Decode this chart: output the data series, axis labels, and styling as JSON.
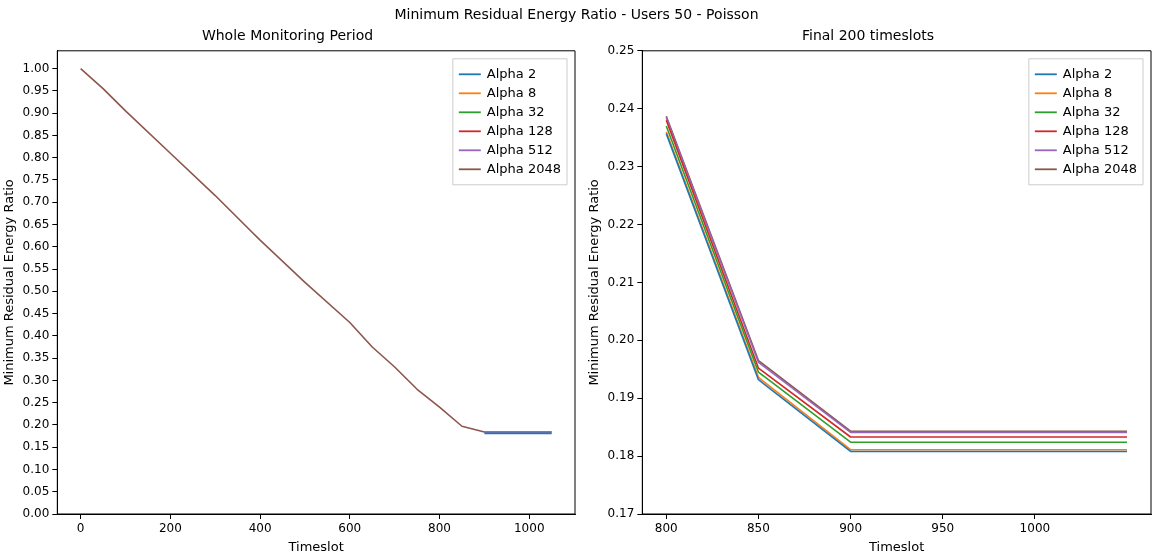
{
  "chart_data": [
    {
      "type": "line",
      "title": "Whole Monitoring Period",
      "xlabel": "Timeslot",
      "ylabel": "Minimum Residual Energy Ratio",
      "annotations": [
        "Minimum Residual Energy Ratio - Users 50 - Poisson"
      ],
      "x": [
        0,
        50,
        100,
        200,
        300,
        400,
        500,
        600,
        650,
        700,
        750,
        800,
        850,
        900,
        1050
      ],
      "series": [
        {
          "name": "Alpha 2",
          "color": "#1f77b4",
          "values": [
            null,
            null,
            null,
            null,
            null,
            null,
            null,
            null,
            null,
            null,
            null,
            null,
            null,
            0.181,
            0.181
          ]
        },
        {
          "name": "Alpha 8",
          "color": "#ff7f0e",
          "values": [
            null,
            null,
            null,
            null,
            null,
            null,
            null,
            null,
            null,
            null,
            null,
            null,
            null,
            null,
            null
          ]
        },
        {
          "name": "Alpha 32",
          "color": "#2ca02c",
          "values": [
            null,
            null,
            null,
            null,
            null,
            null,
            null,
            null,
            null,
            null,
            null,
            null,
            null,
            null,
            null
          ]
        },
        {
          "name": "Alpha 128",
          "color": "#d62728",
          "values": [
            null,
            null,
            null,
            null,
            null,
            null,
            null,
            null,
            null,
            null,
            null,
            null,
            null,
            null,
            null
          ]
        },
        {
          "name": "Alpha 512",
          "color": "#9467bd",
          "values": [
            null,
            null,
            null,
            null,
            null,
            null,
            null,
            null,
            null,
            null,
            null,
            null,
            null,
            0.184,
            0.184
          ]
        },
        {
          "name": "Alpha 2048",
          "color": "#8c564b",
          "values": [
            1.0,
            0.955,
            0.905,
            0.81,
            0.715,
            0.615,
            0.52,
            0.43,
            0.375,
            0.33,
            0.28,
            0.24,
            0.197,
            0.184,
            0.184
          ]
        }
      ],
      "xlim": [
        -52,
        1102
      ],
      "xticks": [
        0,
        200,
        400,
        600,
        800,
        1000
      ],
      "ylim": [
        0,
        1.04
      ],
      "yticks": [
        {
          "value": 0,
          "label": "0.00"
        },
        {
          "value": 0.05,
          "label": "0.05"
        },
        {
          "value": 0.1,
          "label": "0.10"
        },
        {
          "value": 0.15,
          "label": "0.15"
        },
        {
          "value": 0.2,
          "label": "0.20"
        },
        {
          "value": 0.25,
          "label": "0.25"
        },
        {
          "value": 0.3,
          "label": "0.30"
        },
        {
          "value": 0.35,
          "label": "0.35"
        },
        {
          "value": 0.4,
          "label": "0.40"
        },
        {
          "value": 0.45,
          "label": "0.45"
        },
        {
          "value": 0.5,
          "label": "0.50"
        },
        {
          "value": 0.55,
          "label": "0.55"
        },
        {
          "value": 0.6,
          "label": "0.60"
        },
        {
          "value": 0.65,
          "label": "0.65"
        },
        {
          "value": 0.7,
          "label": "0.70"
        },
        {
          "value": 0.75,
          "label": "0.75"
        },
        {
          "value": 0.8,
          "label": "0.80"
        },
        {
          "value": 0.85,
          "label": "0.85"
        },
        {
          "value": 0.9,
          "label": "0.90"
        },
        {
          "value": 0.95,
          "label": "0.95"
        },
        {
          "value": 1,
          "label": "1.00"
        }
      ],
      "grid": false,
      "legend": "top right",
      "marker": "none",
      "line_style": "solid"
    },
    {
      "type": "line",
      "title": "Final 200 timeslots",
      "xlabel": "Timeslot",
      "ylabel": "Minimum Residual Energy Ratio",
      "x": [
        800,
        850,
        900,
        1050
      ],
      "series": [
        {
          "name": "Alpha 2",
          "color": "#1f77b4",
          "values": [
            0.2357,
            0.1932,
            0.1808,
            0.1808
          ]
        },
        {
          "name": "Alpha 8",
          "color": "#ff7f0e",
          "values": [
            0.236,
            0.1936,
            0.1811,
            0.1811
          ]
        },
        {
          "name": "Alpha 32",
          "color": "#2ca02c",
          "values": [
            0.237,
            0.1945,
            0.1824,
            0.1824
          ]
        },
        {
          "name": "Alpha 128",
          "color": "#d62728",
          "values": [
            0.238,
            0.1952,
            0.1833,
            0.1833
          ]
        },
        {
          "name": "Alpha 512",
          "color": "#9467bd",
          "values": [
            0.2385,
            0.1962,
            0.1841,
            0.1841
          ]
        },
        {
          "name": "Alpha 2048",
          "color": "#8c564b",
          "values": [
            0.2387,
            0.1965,
            0.1843,
            0.1843
          ]
        }
      ],
      "xlim": [
        787,
        1063
      ],
      "xticks": [
        800,
        850,
        900,
        950,
        1000
      ],
      "ylim": [
        0.17,
        0.25
      ],
      "yticks": [
        {
          "value": 0.17,
          "label": "0.17"
        },
        {
          "value": 0.18,
          "label": "0.18"
        },
        {
          "value": 0.19,
          "label": "0.19"
        },
        {
          "value": 0.2,
          "label": "0.20"
        },
        {
          "value": 0.21,
          "label": "0.21"
        },
        {
          "value": 0.22,
          "label": "0.22"
        },
        {
          "value": 0.23,
          "label": "0.23"
        },
        {
          "value": 0.24,
          "label": "0.24"
        },
        {
          "value": 0.25,
          "label": "0.25"
        }
      ],
      "grid": false,
      "legend": "top right",
      "marker": "none",
      "line_style": "solid"
    }
  ]
}
